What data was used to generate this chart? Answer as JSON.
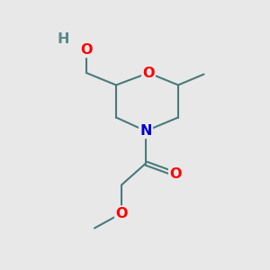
{
  "bg_color": "#e8e8e8",
  "atom_colors": {
    "C": "#4a7a7a",
    "O": "#ff0000",
    "N": "#0000cc",
    "H": "#5a8a8a"
  },
  "bond_color": "#4a7a7a",
  "bond_width": 1.5,
  "font_size_atom": 11.5
}
